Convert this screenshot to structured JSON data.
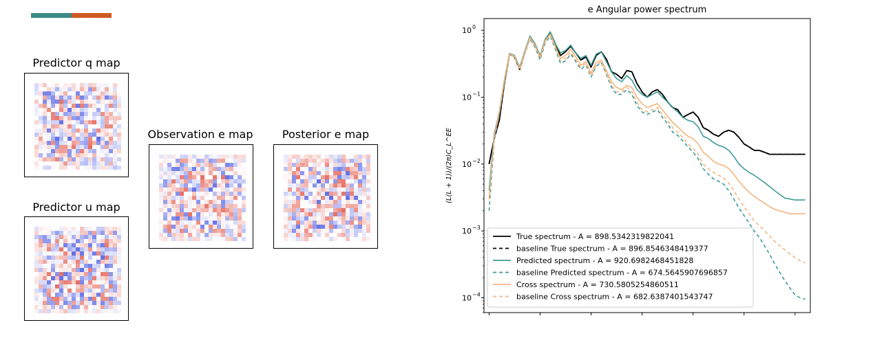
{
  "colorbar": {
    "colors": [
      "#3a8c85",
      "#d05a23"
    ]
  },
  "maps": [
    {
      "title": "Predictor q map"
    },
    {
      "title": "Predictor u map"
    },
    {
      "title": "Observation e map"
    },
    {
      "title": "Posterior e map"
    }
  ],
  "map_colors": {
    "positive": "#e04a3a",
    "negative": "#3a4ae0"
  },
  "chart_data": {
    "type": "line",
    "title": "e Angular power spectrum",
    "xlabel": "",
    "ylabel": "(L(L + 1))/(2π)C_L^EE",
    "yscale": "log",
    "ylim": [
      6e-05,
      1.5
    ],
    "xlim": [
      -1,
      63
    ],
    "yticks": [
      {
        "value": 1,
        "label": "10",
        "exp": "0"
      },
      {
        "value": 0.1,
        "label": "10",
        "exp": "−1"
      },
      {
        "value": 0.01,
        "label": "10",
        "exp": "−2"
      },
      {
        "value": 0.001,
        "label": "10",
        "exp": "−3"
      },
      {
        "value": 0.0001,
        "label": "10",
        "exp": "−4"
      }
    ],
    "xticks": [
      0,
      10,
      20,
      30,
      40,
      50,
      60
    ],
    "legend_position": "lower-left",
    "x": [
      0,
      1,
      2,
      3,
      4,
      5,
      6,
      7,
      8,
      9,
      10,
      11,
      12,
      13,
      14,
      15,
      16,
      17,
      18,
      19,
      20,
      21,
      22,
      23,
      24,
      25,
      26,
      27,
      28,
      29,
      30,
      31,
      32,
      33,
      34,
      35,
      36,
      37,
      38,
      39,
      40,
      41,
      42,
      43,
      44,
      45,
      46,
      47,
      48,
      49,
      50,
      51,
      52,
      53,
      54,
      55,
      56,
      57,
      58,
      59,
      60,
      61,
      62
    ],
    "series": [
      {
        "name": "True spectrum - A = 898.5342319822041",
        "color": "#000000",
        "dash": false,
        "values": [
          0.01,
          0.024,
          0.045,
          0.16,
          0.44,
          0.4,
          0.26,
          0.47,
          0.8,
          0.62,
          0.4,
          0.72,
          0.92,
          0.63,
          0.42,
          0.48,
          0.58,
          0.46,
          0.36,
          0.4,
          0.28,
          0.42,
          0.48,
          0.37,
          0.24,
          0.22,
          0.19,
          0.25,
          0.24,
          0.16,
          0.12,
          0.1,
          0.12,
          0.13,
          0.11,
          0.085,
          0.07,
          0.065,
          0.05,
          0.055,
          0.06,
          0.05,
          0.035,
          0.032,
          0.028,
          0.026,
          0.03,
          0.032,
          0.03,
          0.025,
          0.02,
          0.018,
          0.016,
          0.016,
          0.015,
          0.014,
          0.014,
          0.014,
          0.014,
          0.014,
          0.014,
          0.014,
          0.014
        ]
      },
      {
        "name": "baseline True spectrum - A = 896.8546348419377",
        "color": "#000000",
        "dash": true,
        "values": [
          0.01,
          0.024,
          0.045,
          0.16,
          0.44,
          0.4,
          0.26,
          0.47,
          0.8,
          0.62,
          0.4,
          0.72,
          0.92,
          0.63,
          0.42,
          0.48,
          0.58,
          0.46,
          0.36,
          0.4,
          0.28,
          0.42,
          0.48,
          0.37,
          0.24,
          0.22,
          0.19,
          0.25,
          0.24,
          0.16,
          0.12,
          0.1,
          0.12,
          0.13,
          0.11,
          0.085,
          0.07,
          0.065,
          0.05,
          0.055,
          0.06,
          0.05,
          0.035,
          0.032,
          0.028,
          0.026,
          0.03,
          0.032,
          0.03,
          0.025,
          0.02,
          0.018,
          0.016,
          0.016,
          0.015,
          0.014,
          0.014,
          0.014,
          0.014,
          0.014,
          0.014,
          0.014,
          0.014
        ]
      },
      {
        "name": "Predicted spectrum - A = 920.6982468451828",
        "color": "#3a9a96",
        "dash": false,
        "values": [
          0.004,
          0.028,
          0.06,
          0.18,
          0.45,
          0.42,
          0.28,
          0.49,
          0.82,
          0.63,
          0.42,
          0.74,
          0.95,
          0.63,
          0.46,
          0.5,
          0.6,
          0.46,
          0.38,
          0.42,
          0.3,
          0.44,
          0.48,
          0.34,
          0.24,
          0.19,
          0.17,
          0.21,
          0.18,
          0.13,
          0.11,
          0.1,
          0.11,
          0.12,
          0.1,
          0.085,
          0.07,
          0.06,
          0.05,
          0.045,
          0.043,
          0.036,
          0.026,
          0.024,
          0.021,
          0.019,
          0.018,
          0.016,
          0.013,
          0.01,
          0.0085,
          0.0075,
          0.0068,
          0.006,
          0.0053,
          0.0046,
          0.004,
          0.0035,
          0.0031,
          0.003,
          0.0029,
          0.0029,
          0.0029
        ]
      },
      {
        "name": "baseline Predicted spectrum - A = 674.5645907696857",
        "color": "#3a9a96",
        "dash": true,
        "values": [
          0.002,
          0.023,
          0.055,
          0.17,
          0.44,
          0.4,
          0.26,
          0.45,
          0.74,
          0.56,
          0.36,
          0.64,
          0.82,
          0.52,
          0.32,
          0.35,
          0.44,
          0.34,
          0.26,
          0.3,
          0.2,
          0.29,
          0.33,
          0.22,
          0.14,
          0.11,
          0.11,
          0.13,
          0.11,
          0.075,
          0.06,
          0.055,
          0.06,
          0.065,
          0.05,
          0.04,
          0.03,
          0.027,
          0.022,
          0.018,
          0.015,
          0.012,
          0.0085,
          0.007,
          0.006,
          0.0055,
          0.005,
          0.004,
          0.003,
          0.0022,
          0.0017,
          0.0013,
          0.001,
          0.0008,
          0.0006,
          0.00045,
          0.00032,
          0.00024,
          0.00018,
          0.00014,
          0.00011,
          0.0001,
          9.5e-05
        ]
      },
      {
        "name": "Cross spectrum - A = 730.5805254860511",
        "color": "#f2b47e",
        "dash": false,
        "values": [
          0.003,
          0.026,
          0.058,
          0.17,
          0.44,
          0.41,
          0.27,
          0.47,
          0.78,
          0.6,
          0.4,
          0.7,
          0.88,
          0.57,
          0.38,
          0.42,
          0.52,
          0.4,
          0.3,
          0.34,
          0.23,
          0.33,
          0.36,
          0.25,
          0.17,
          0.14,
          0.13,
          0.15,
          0.14,
          0.1,
          0.08,
          0.07,
          0.075,
          0.08,
          0.065,
          0.052,
          0.042,
          0.036,
          0.03,
          0.026,
          0.024,
          0.02,
          0.015,
          0.013,
          0.011,
          0.01,
          0.0095,
          0.0085,
          0.007,
          0.0055,
          0.0045,
          0.0038,
          0.0033,
          0.0029,
          0.0026,
          0.0023,
          0.0021,
          0.002,
          0.0019,
          0.0018,
          0.0018,
          0.0018,
          0.0018
        ]
      },
      {
        "name": "baseline Cross spectrum - A = 682.6387401543747",
        "color": "#f2b47e",
        "dash": true,
        "values": [
          0.003,
          0.025,
          0.057,
          0.17,
          0.44,
          0.4,
          0.26,
          0.46,
          0.76,
          0.58,
          0.38,
          0.68,
          0.85,
          0.55,
          0.35,
          0.38,
          0.47,
          0.36,
          0.28,
          0.32,
          0.21,
          0.3,
          0.34,
          0.23,
          0.15,
          0.12,
          0.12,
          0.14,
          0.12,
          0.085,
          0.065,
          0.06,
          0.065,
          0.07,
          0.055,
          0.045,
          0.035,
          0.03,
          0.025,
          0.02,
          0.017,
          0.014,
          0.01,
          0.0085,
          0.0075,
          0.0068,
          0.0062,
          0.0052,
          0.004,
          0.003,
          0.0023,
          0.0018,
          0.0014,
          0.0012,
          0.001,
          0.00085,
          0.0007,
          0.0006,
          0.00052,
          0.00045,
          0.0004,
          0.00036,
          0.00033
        ]
      }
    ]
  }
}
